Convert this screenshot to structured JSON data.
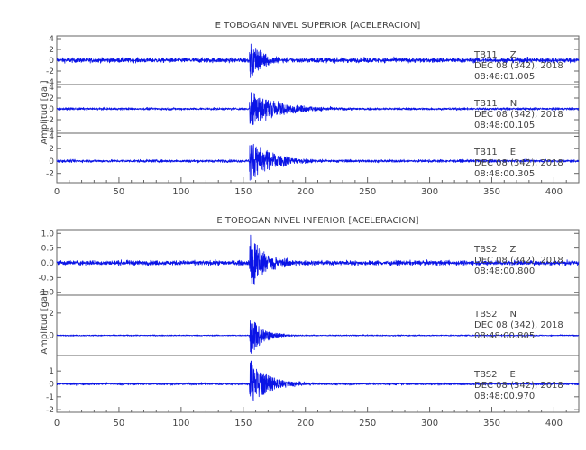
{
  "chart_data": [
    {
      "type": "line",
      "title": "E TOBOGAN NIVEL SUPERIOR [ACELERACION]",
      "ylabel": "Amplitud [gal]",
      "xlim": [
        0,
        420
      ],
      "xticks": [
        0,
        50,
        100,
        150,
        200,
        250,
        300,
        350,
        400
      ],
      "event_start": 155,
      "panels": [
        {
          "name": "TB11 Z",
          "station": "TB11",
          "component": "Z",
          "date": "DEC 08 (342), 2018",
          "start_time": "08:48:01.005",
          "ylim": [
            -4.5,
            4.5
          ],
          "yticks": [
            4,
            2,
            0,
            -2,
            -4
          ],
          "ytick_labels": [
            "4",
            "2",
            "0",
            "-2",
            "-4"
          ],
          "noise": 0.4,
          "peak": 3.8,
          "decay": 10
        },
        {
          "name": "TB11 N",
          "station": "TB11",
          "component": "N",
          "date": "DEC 08 (342), 2018",
          "start_time": "08:48:00.105",
          "ylim": [
            -4.5,
            4.5
          ],
          "yticks": [
            4,
            2,
            0,
            -2,
            -4
          ],
          "ytick_labels": [
            "4",
            "2",
            "0",
            "-2",
            "-4"
          ],
          "noise": 0.2,
          "peak": 3.6,
          "decay": 22
        },
        {
          "name": "TB11 E",
          "station": "TB11",
          "component": "E",
          "date": "DEC 08 (342), 2018",
          "start_time": "08:48:00.305",
          "ylim": [
            -3.5,
            4.5
          ],
          "yticks": [
            4,
            2,
            0,
            -2
          ],
          "ytick_labels": [
            "4",
            "2",
            "0",
            "-2"
          ],
          "noise": 0.2,
          "peak": 3.4,
          "decay": 18
        }
      ]
    },
    {
      "type": "line",
      "title": "E TOBOGAN NIVEL INFERIOR [ACELERACION]",
      "ylabel": "Amplitud [gal]",
      "xlim": [
        0,
        420
      ],
      "xticks": [
        0,
        50,
        100,
        150,
        200,
        250,
        300,
        350,
        400
      ],
      "event_start": 155,
      "panels": [
        {
          "name": "TBS2 Z",
          "station": "TBS2",
          "component": "Z",
          "date": "DEC 08 (342), 2018",
          "start_time": "08:48:00.800",
          "ylim": [
            -1.1,
            1.1
          ],
          "yticks": [
            1.0,
            0.5,
            0.0,
            -0.5,
            -1.0
          ],
          "ytick_labels": [
            "1.0",
            "0.5",
            "0.0",
            "-0.5",
            "-1.0"
          ],
          "noise": 0.07,
          "peak": 1.0,
          "decay": 12
        },
        {
          "name": "TBS2 N",
          "station": "TBS2",
          "component": "N",
          "date": "DEC 08 (342), 2018",
          "start_time": "08:48:00.805",
          "ylim": [
            -1.8,
            3.6
          ],
          "yticks": [
            2,
            0
          ],
          "ytick_labels": [
            "2",
            "0"
          ],
          "noise": 0.05,
          "peak": 1.9,
          "decay": 10
        },
        {
          "name": "TBS2 E",
          "station": "TBS2",
          "component": "E",
          "date": "DEC 08 (342), 2018",
          "start_time": "08:48:00.970",
          "ylim": [
            -2.2,
            2.2
          ],
          "yticks": [
            1,
            0,
            -1,
            -2
          ],
          "ytick_labels": [
            "1",
            "0",
            "-1",
            "-2"
          ],
          "noise": 0.08,
          "peak": 2.0,
          "decay": 14
        }
      ]
    }
  ],
  "colors": {
    "trace": "#0a14e6",
    "axis": "#666666",
    "text": "#444444"
  }
}
